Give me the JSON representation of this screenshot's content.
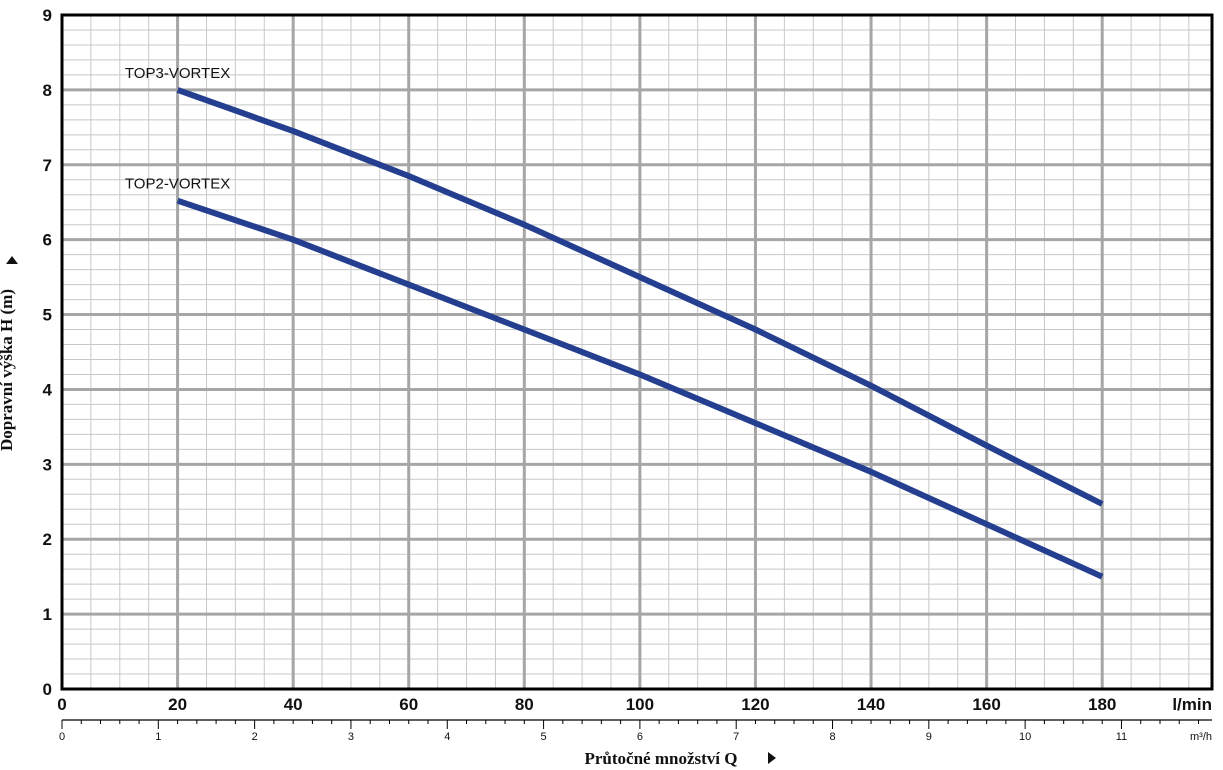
{
  "chart_data": {
    "type": "line",
    "x_unit": "l/min",
    "x_unit_secondary": "m³/h",
    "xlim": [
      0,
      199
    ],
    "ylim": [
      0,
      9
    ],
    "x_ticks": [
      0,
      20,
      40,
      60,
      80,
      100,
      120,
      140,
      160,
      180
    ],
    "y_ticks": [
      0,
      1,
      2,
      3,
      4,
      5,
      6,
      7,
      8,
      9
    ],
    "secondary_x_ticks": [
      0,
      1,
      2,
      3,
      4,
      5,
      6,
      7,
      8,
      9,
      10,
      11
    ],
    "xlabel": "Průtočné množství Q",
    "ylabel": "Dopravní výška H (m)",
    "grid": true,
    "line_color": "#243f8f",
    "series": [
      {
        "name": "TOP3-VORTEX",
        "x": [
          20,
          40,
          60,
          80,
          100,
          120,
          140,
          160,
          180
        ],
        "y": [
          8.0,
          7.45,
          6.85,
          6.2,
          5.5,
          4.8,
          4.05,
          3.25,
          2.47
        ]
      },
      {
        "name": "TOP2-VORTEX",
        "x": [
          20,
          40,
          60,
          80,
          100,
          120,
          140,
          160,
          180
        ],
        "y": [
          6.52,
          6.0,
          5.4,
          4.8,
          4.2,
          3.55,
          2.9,
          2.2,
          1.5
        ]
      }
    ]
  }
}
